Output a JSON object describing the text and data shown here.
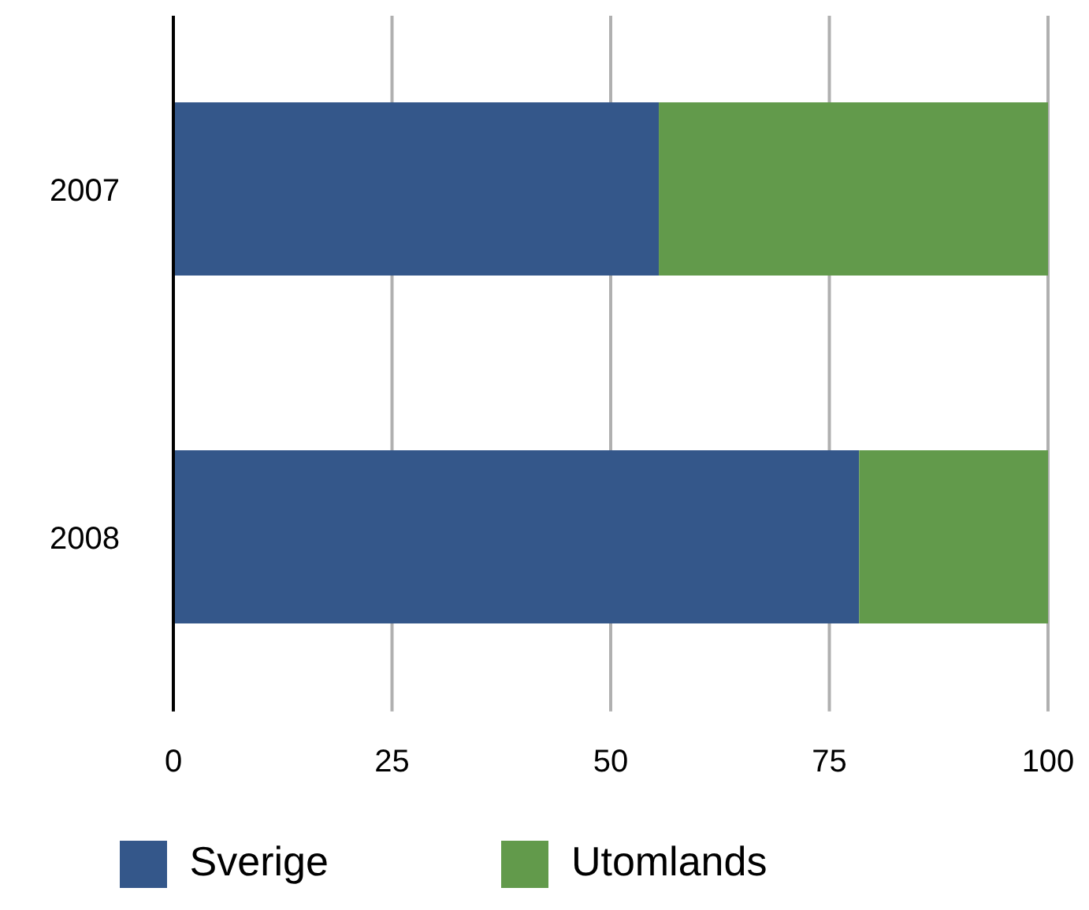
{
  "chart_data": {
    "type": "bar",
    "orientation": "horizontal",
    "stacked": true,
    "categories": [
      "2007",
      "2008"
    ],
    "series": [
      {
        "name": "Sverige",
        "color": "#34578a",
        "values": [
          55.5,
          78.4
        ]
      },
      {
        "name": "Utomlands",
        "color": "#629a4b",
        "values": [
          44.5,
          21.6
        ]
      }
    ],
    "xlim": [
      0,
      100
    ],
    "xticks": [
      0,
      25,
      50,
      75,
      100
    ],
    "grid": "x",
    "legend": "bottom"
  }
}
